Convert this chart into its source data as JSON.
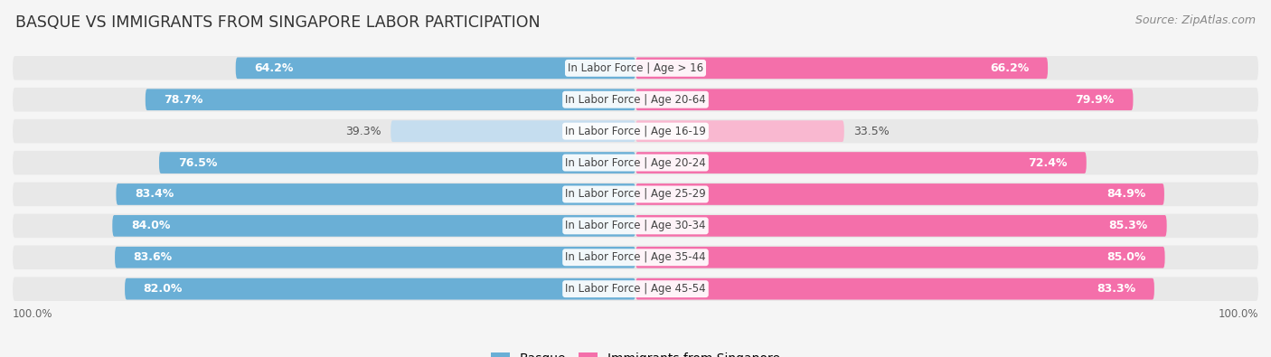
{
  "title": "BASQUE VS IMMIGRANTS FROM SINGAPORE LABOR PARTICIPATION",
  "source": "Source: ZipAtlas.com",
  "categories": [
    "In Labor Force | Age > 16",
    "In Labor Force | Age 20-64",
    "In Labor Force | Age 16-19",
    "In Labor Force | Age 20-24",
    "In Labor Force | Age 25-29",
    "In Labor Force | Age 30-34",
    "In Labor Force | Age 35-44",
    "In Labor Force | Age 45-54"
  ],
  "basque_values": [
    64.2,
    78.7,
    39.3,
    76.5,
    83.4,
    84.0,
    83.6,
    82.0
  ],
  "singapore_values": [
    66.2,
    79.9,
    33.5,
    72.4,
    84.9,
    85.3,
    85.0,
    83.3
  ],
  "basque_color": "#6aafd6",
  "basque_color_light": "#c5ddef",
  "singapore_color": "#f46faa",
  "singapore_color_light": "#f9b8d0",
  "row_bg_color": "#e8e8e8",
  "bg_color": "#f5f5f5",
  "title_color": "#333333",
  "source_color": "#888888",
  "label_color_dark": "#555555",
  "max_val": 100.0,
  "legend_basque": "Basque",
  "legend_singapore": "Immigrants from Singapore",
  "title_fontsize": 12.5,
  "source_fontsize": 9,
  "bar_label_fontsize": 9,
  "category_fontsize": 8.5,
  "legend_fontsize": 10
}
